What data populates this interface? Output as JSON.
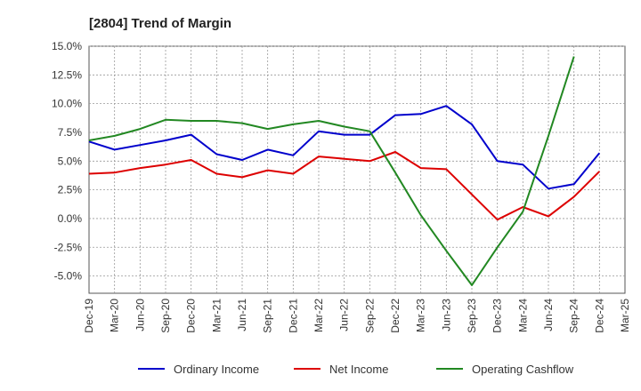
{
  "chart_data": {
    "type": "line",
    "title": "[2804]  Trend of Margin",
    "xlabel": "",
    "ylabel": "",
    "categories": [
      "Dec-19",
      "Mar-20",
      "Jun-20",
      "Sep-20",
      "Dec-20",
      "Mar-21",
      "Jun-21",
      "Sep-21",
      "Dec-21",
      "Mar-22",
      "Jun-22",
      "Sep-22",
      "Dec-22",
      "Mar-23",
      "Jun-23",
      "Sep-23",
      "Dec-23",
      "Mar-24",
      "Jun-24",
      "Sep-24",
      "Dec-24",
      "Mar-25"
    ],
    "ylim": [
      -6.5,
      15.0
    ],
    "yticks": [
      15.0,
      12.5,
      10.0,
      7.5,
      5.0,
      2.5,
      0.0,
      -2.5,
      -5.0
    ],
    "ytick_labels": [
      "15.0%",
      "12.5%",
      "10.0%",
      "7.5%",
      "5.0%",
      "2.5%",
      "0.0%",
      "-2.5%",
      "-5.0%"
    ],
    "grid": true,
    "legend_position": "bottom",
    "series": [
      {
        "name": "Ordinary Income",
        "color": "#0000cc",
        "values": [
          6.7,
          6.0,
          6.4,
          6.8,
          7.3,
          5.6,
          5.1,
          6.0,
          5.5,
          7.6,
          7.3,
          7.3,
          9.0,
          9.1,
          9.8,
          8.2,
          5.0,
          4.7,
          2.6,
          3.0,
          5.7,
          null
        ]
      },
      {
        "name": "Net Income",
        "color": "#dd0000",
        "values": [
          3.9,
          4.0,
          4.4,
          4.7,
          5.1,
          3.9,
          3.6,
          4.2,
          3.9,
          5.4,
          5.2,
          5.0,
          5.8,
          4.4,
          4.3,
          2.1,
          -0.1,
          1.0,
          0.2,
          1.9,
          4.1,
          null
        ]
      },
      {
        "name": "Operating Cashflow",
        "color": "#228822",
        "values": [
          6.8,
          7.2,
          7.8,
          8.6,
          8.5,
          8.5,
          8.3,
          7.8,
          8.2,
          8.5,
          8.0,
          7.6,
          4.0,
          0.3,
          -2.8,
          -5.8,
          -2.5,
          0.6,
          7.2,
          14.1,
          null,
          null
        ]
      }
    ]
  }
}
